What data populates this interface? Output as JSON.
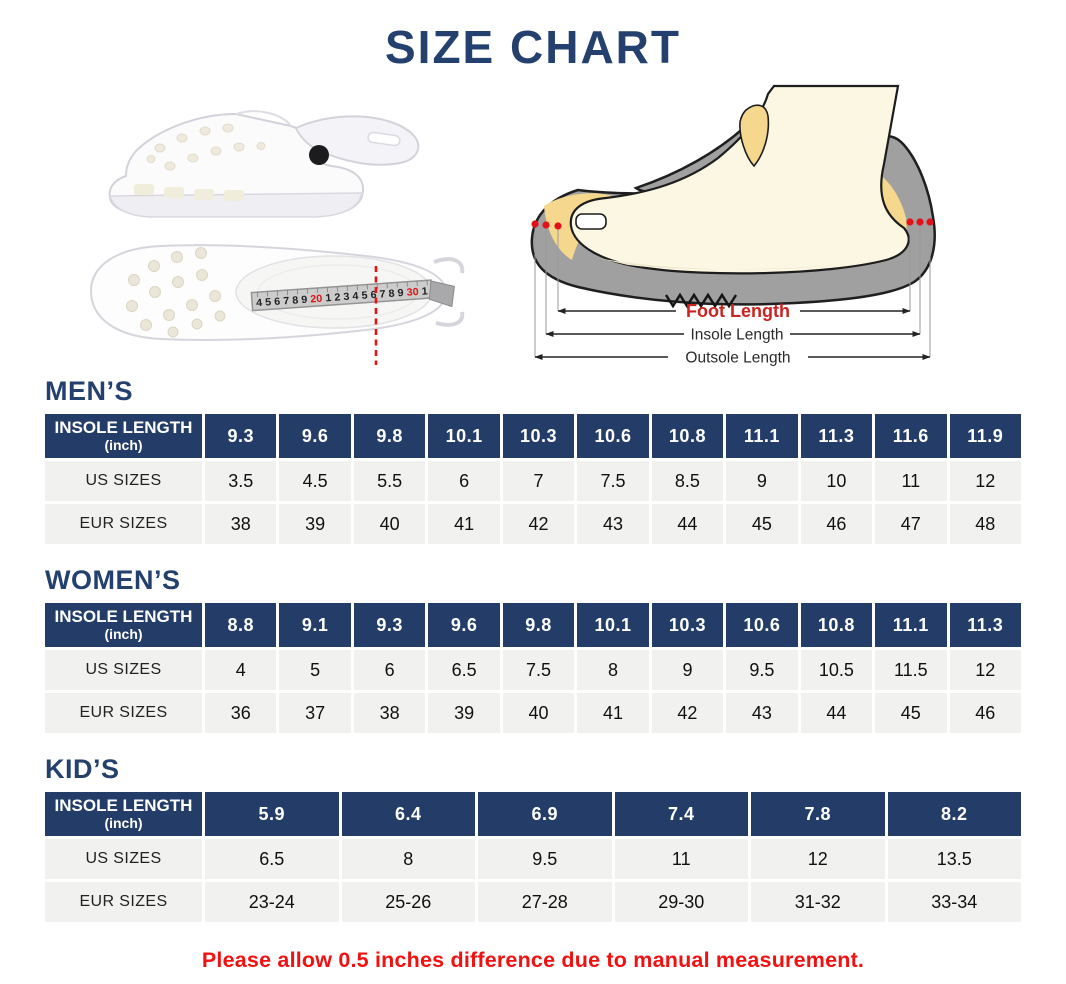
{
  "page": {
    "title": "SIZE CHART",
    "footnote": "Please allow 0.5 inches difference due to manual measurement."
  },
  "colors": {
    "navy": "#243d68",
    "row_bg": "#f1f1ef",
    "footnote_red": "#f21111",
    "foot_length_red": "#cb2320",
    "tape_highlight_red": "#e01414"
  },
  "diagram": {
    "foot_length": "Foot Length",
    "insole_length": "Insole Length",
    "outsole_length": "Outsole Length"
  },
  "tape": {
    "segments": [
      {
        "text": "4 5 6 7 8 9 ",
        "red": false
      },
      {
        "text": "20",
        "red": true
      },
      {
        "text": " 1 2 3 4 5 6 7 8 9 ",
        "red": false
      },
      {
        "text": "30",
        "red": true
      },
      {
        "text": " 1",
        "red": false
      }
    ]
  },
  "tables": [
    {
      "heading": "MEN’S",
      "header_line1": "INSOLE LENGTH",
      "header_line2": "(inch)",
      "us_label": "US SIZES",
      "eur_label": "EUR SIZES",
      "insole": [
        "9.3",
        "9.6",
        "9.8",
        "10.1",
        "10.3",
        "10.6",
        "10.8",
        "11.1",
        "11.3",
        "11.6",
        "11.9"
      ],
      "us": [
        "3.5",
        "4.5",
        "5.5",
        "6",
        "7",
        "7.5",
        "8.5",
        "9",
        "10",
        "11",
        "12"
      ],
      "eur": [
        "38",
        "39",
        "40",
        "41",
        "42",
        "43",
        "44",
        "45",
        "46",
        "47",
        "48"
      ]
    },
    {
      "heading": "WOMEN’S",
      "header_line1": "INSOLE LENGTH",
      "header_line2": "(inch)",
      "us_label": "US SIZES",
      "eur_label": "EUR SIZES",
      "insole": [
        "8.8",
        "9.1",
        "9.3",
        "9.6",
        "9.8",
        "10.1",
        "10.3",
        "10.6",
        "10.8",
        "11.1",
        "11.3"
      ],
      "us": [
        "4",
        "5",
        "6",
        "6.5",
        "7.5",
        "8",
        "9",
        "9.5",
        "10.5",
        "11.5",
        "12"
      ],
      "eur": [
        "36",
        "37",
        "38",
        "39",
        "40",
        "41",
        "42",
        "43",
        "44",
        "45",
        "46"
      ]
    },
    {
      "heading": "KID’S",
      "header_line1": "INSOLE LENGTH",
      "header_line2": "(inch)",
      "us_label": "US SIZES",
      "eur_label": "EUR SIZES",
      "insole": [
        "5.9",
        "6.4",
        "6.9",
        "7.4",
        "7.8",
        "8.2"
      ],
      "us": [
        "6.5",
        "8",
        "9.5",
        "11",
        "12",
        "13.5"
      ],
      "eur": [
        "23-24",
        "25-26",
        "27-28",
        "29-30",
        "31-32",
        "33-34"
      ]
    }
  ]
}
